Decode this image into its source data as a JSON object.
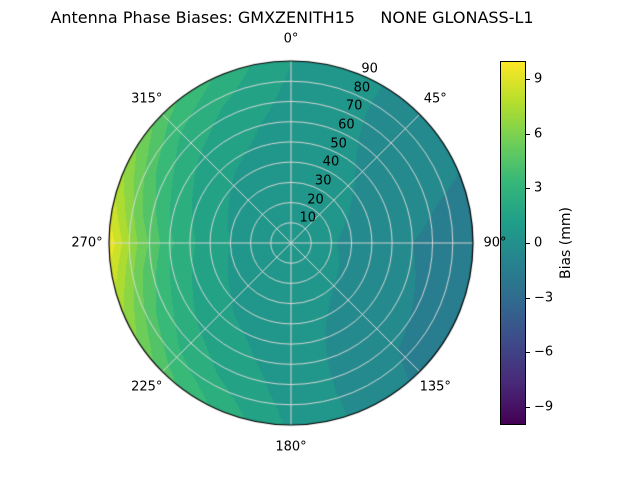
{
  "title": "Antenna Phase Biases: GMXZENITH15     NONE GLONASS-L1",
  "chart_data": {
    "type": "heatmap",
    "projection": "polar",
    "title": "Antenna Phase Biases: GMXZENITH15     NONE GLONASS-L1",
    "angular_axis": {
      "unit": "degrees azimuth",
      "direction": "clockwise",
      "zero_location": "top",
      "tick_labels": [
        "0°",
        "45°",
        "90°",
        "135°",
        "180°",
        "225°",
        "270°",
        "315°"
      ],
      "tick_angles_deg": [
        0,
        45,
        90,
        135,
        180,
        225,
        270,
        315
      ]
    },
    "radial_axis": {
      "unit": "degrees zenith",
      "range": [
        0,
        90
      ],
      "tick_values": [
        10,
        20,
        30,
        40,
        50,
        60,
        70,
        80,
        90
      ],
      "label_azimuth_deg": 22.5
    },
    "colorbar": {
      "label": "Bias (mm)",
      "ticks": [
        {
          "label": "9",
          "value": 9
        },
        {
          "label": "6",
          "value": 6
        },
        {
          "label": "3",
          "value": 3
        },
        {
          "label": "0",
          "value": 0
        },
        {
          "label": "−3",
          "value": -3
        },
        {
          "label": "−6",
          "value": -6
        },
        {
          "label": "−9",
          "value": -9
        }
      ],
      "range": [
        -10,
        10
      ],
      "colormap": "viridis",
      "colormap_stops": [
        "#440154",
        "#482878",
        "#3e4989",
        "#31688e",
        "#26828e",
        "#1f9e89",
        "#35b779",
        "#6ece58",
        "#b5de2b",
        "#fde725"
      ]
    },
    "contour_level_step_mm": 1,
    "grid": {
      "azimuth_deg": [
        0,
        45,
        90,
        135,
        180,
        225,
        270,
        315,
        360
      ],
      "zenith_deg": [
        0,
        15,
        30,
        45,
        60,
        75,
        90
      ],
      "bias_mm": [
        [
          0.4,
          0.4,
          0.5,
          0.5,
          0.6,
          0.8,
          1.0
        ],
        [
          0.4,
          0.3,
          0.2,
          0.0,
          -0.2,
          -0.4,
          -0.5
        ],
        [
          0.4,
          0.2,
          -0.2,
          -0.6,
          -1.0,
          -1.3,
          -1.5
        ],
        [
          0.4,
          0.3,
          0.0,
          -0.4,
          -0.8,
          -1.0,
          -1.2
        ],
        [
          0.4,
          0.4,
          0.4,
          0.4,
          0.5,
          0.6,
          0.8
        ],
        [
          0.4,
          0.5,
          0.7,
          1.1,
          1.8,
          2.8,
          4.5
        ],
        [
          0.4,
          0.6,
          1.0,
          1.8,
          3.2,
          5.8,
          9.8
        ],
        [
          0.4,
          0.5,
          0.7,
          1.1,
          1.8,
          2.8,
          4.5
        ],
        [
          0.4,
          0.4,
          0.5,
          0.5,
          0.6,
          0.8,
          1.0
        ]
      ]
    }
  }
}
